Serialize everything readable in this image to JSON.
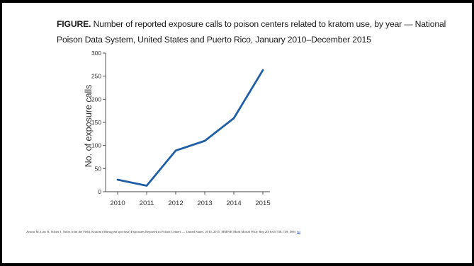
{
  "figure": {
    "title_lead": "FIGURE.",
    "title_text": " Number of reported exposure calls to poison centers related to kratom use, by year — National Poison Data System, United States and Puerto Rico, January 2010–December 2015",
    "line_color": "#1f5fa6"
  },
  "chart_data": {
    "type": "line",
    "title": "Number of reported exposure calls to poison centers related to kratom use, by year — National Poison Data System, United States and Puerto Rico, January 2010–December 2015",
    "xlabel": "",
    "ylabel": "No. of exposure calls",
    "categories": [
      "2010",
      "2011",
      "2012",
      "2013",
      "2014",
      "2015"
    ],
    "series": [
      {
        "values": [
          26,
          13,
          89,
          110,
          159,
          263
        ]
      }
    ],
    "yticks": [
      "0",
      "50",
      "100",
      "150",
      "200",
      "250",
      "300"
    ],
    "ylim": [
      0,
      300
    ],
    "grid": false,
    "legend": "none"
  },
  "citation": {
    "text_before": "Anwar M, Law R, Schier J. Notes from the Field. Kratom (",
    "italic": "Mitragyna speciosa",
    "text_after": ") Exposures Reported to Poison Centers — United States, 2010–2015. MMWR Morb Mortal Wkly Rep 2016;65:748–749. DOI: ",
    "link_text": "htt"
  }
}
